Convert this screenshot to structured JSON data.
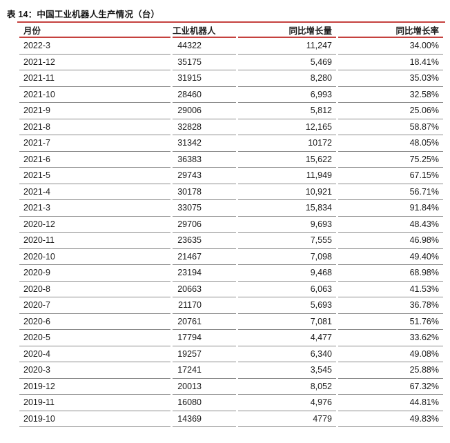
{
  "title": "表 14：中国工业机器人生产情况（台）",
  "colors": {
    "accent_line": "#c5413e",
    "row_line": "#8a8a8a",
    "text": "#1a1a1a",
    "background": "#ffffff"
  },
  "table": {
    "columns": [
      "月份",
      "工业机器人",
      "同比增长量",
      "同比增长率"
    ],
    "rows": [
      [
        "2022-3",
        "44322",
        "11,247",
        "34.00%"
      ],
      [
        "2021-12",
        "35175",
        "5,469",
        "18.41%"
      ],
      [
        "2021-11",
        "31915",
        "8,280",
        "35.03%"
      ],
      [
        "2021-10",
        "28460",
        "6,993",
        "32.58%"
      ],
      [
        "2021-9",
        "29006",
        "5,812",
        "25.06%"
      ],
      [
        "2021-8",
        "32828",
        "12,165",
        "58.87%"
      ],
      [
        "2021-7",
        "31342",
        "10172",
        "48.05%"
      ],
      [
        "2021-6",
        "36383",
        "15,622",
        "75.25%"
      ],
      [
        "2021-5",
        "29743",
        "11,949",
        "67.15%"
      ],
      [
        "2021-4",
        "30178",
        "10,921",
        "56.71%"
      ],
      [
        "2021-3",
        "33075",
        "15,834",
        "91.84%"
      ],
      [
        "2020-12",
        "29706",
        "9,693",
        "48.43%"
      ],
      [
        "2020-11",
        "23635",
        "7,555",
        "46.98%"
      ],
      [
        "2020-10",
        "21467",
        "7,098",
        "49.40%"
      ],
      [
        "2020-9",
        "23194",
        "9,468",
        "68.98%"
      ],
      [
        "2020-8",
        "20663",
        "6,063",
        "41.53%"
      ],
      [
        "2020-7",
        "21170",
        "5,693",
        "36.78%"
      ],
      [
        "2020-6",
        "20761",
        "7,081",
        "51.76%"
      ],
      [
        "2020-5",
        "17794",
        "4,477",
        "33.62%"
      ],
      [
        "2020-4",
        "19257",
        "6,340",
        "49.08%"
      ],
      [
        "2020-3",
        "17241",
        "3,545",
        "25.88%"
      ],
      [
        "2019-12",
        "20013",
        "8,052",
        "67.32%"
      ],
      [
        "2019-11",
        "16080",
        "4,976",
        "44.81%"
      ],
      [
        "2019-10",
        "14369",
        "4779",
        "49.83%"
      ]
    ]
  }
}
